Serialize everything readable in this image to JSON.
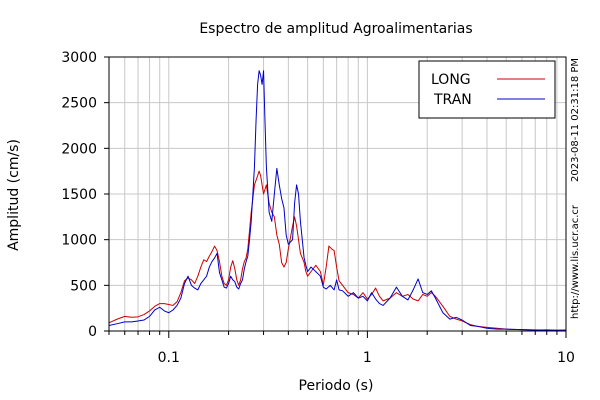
{
  "chart_data": {
    "type": "line",
    "title": "Espectro de amplitud Agroalimentarias",
    "xlabel": "Periodo (s)",
    "ylabel": "Amplitud (cm/s)",
    "x_scale": "log",
    "xlim": [
      0.05,
      10
    ],
    "ylim": [
      0,
      3000
    ],
    "x_tick_labels": [
      "0.1",
      "1",
      "10"
    ],
    "x_tick_values": [
      0.1,
      1,
      10
    ],
    "y_tick_labels": [
      "0",
      "500",
      "1000",
      "1500",
      "2000",
      "2500",
      "3000"
    ],
    "y_tick_values": [
      0,
      500,
      1000,
      1500,
      2000,
      2500,
      3000
    ],
    "grid": true,
    "legend_position": "top-right",
    "side_text_1": "2023-08-11 02:31:18 PM",
    "side_text_2": "http://www.lis.ucr.ac.cr",
    "series": [
      {
        "name": "LONG",
        "color": "#cc0000",
        "points": [
          [
            0.05,
            90
          ],
          [
            0.055,
            130
          ],
          [
            0.06,
            160
          ],
          [
            0.065,
            150
          ],
          [
            0.07,
            155
          ],
          [
            0.075,
            180
          ],
          [
            0.08,
            220
          ],
          [
            0.085,
            270
          ],
          [
            0.09,
            300
          ],
          [
            0.095,
            300
          ],
          [
            0.1,
            290
          ],
          [
            0.105,
            280
          ],
          [
            0.11,
            320
          ],
          [
            0.115,
            420
          ],
          [
            0.12,
            550
          ],
          [
            0.125,
            580
          ],
          [
            0.13,
            560
          ],
          [
            0.135,
            520
          ],
          [
            0.14,
            600
          ],
          [
            0.145,
            700
          ],
          [
            0.15,
            780
          ],
          [
            0.155,
            760
          ],
          [
            0.16,
            820
          ],
          [
            0.165,
            870
          ],
          [
            0.17,
            930
          ],
          [
            0.175,
            880
          ],
          [
            0.18,
            760
          ],
          [
            0.185,
            600
          ],
          [
            0.19,
            520
          ],
          [
            0.195,
            500
          ],
          [
            0.2,
            560
          ],
          [
            0.205,
            700
          ],
          [
            0.21,
            770
          ],
          [
            0.215,
            680
          ],
          [
            0.22,
            560
          ],
          [
            0.225,
            500
          ],
          [
            0.23,
            560
          ],
          [
            0.235,
            680
          ],
          [
            0.24,
            760
          ],
          [
            0.245,
            800
          ],
          [
            0.25,
            900
          ],
          [
            0.255,
            1100
          ],
          [
            0.26,
            1300
          ],
          [
            0.265,
            1450
          ],
          [
            0.27,
            1600
          ],
          [
            0.275,
            1650
          ],
          [
            0.28,
            1700
          ],
          [
            0.285,
            1750
          ],
          [
            0.29,
            1700
          ],
          [
            0.295,
            1600
          ],
          [
            0.3,
            1500
          ],
          [
            0.31,
            1600
          ],
          [
            0.32,
            1400
          ],
          [
            0.33,
            1300
          ],
          [
            0.34,
            1250
          ],
          [
            0.35,
            1050
          ],
          [
            0.36,
            950
          ],
          [
            0.37,
            750
          ],
          [
            0.38,
            700
          ],
          [
            0.39,
            750
          ],
          [
            0.4,
            900
          ],
          [
            0.42,
            1150
          ],
          [
            0.43,
            1250
          ],
          [
            0.44,
            1150
          ],
          [
            0.45,
            1000
          ],
          [
            0.46,
            850
          ],
          [
            0.47,
            800
          ],
          [
            0.48,
            750
          ],
          [
            0.49,
            650
          ],
          [
            0.5,
            600
          ],
          [
            0.52,
            650
          ],
          [
            0.55,
            720
          ],
          [
            0.58,
            650
          ],
          [
            0.6,
            500
          ],
          [
            0.62,
            700
          ],
          [
            0.64,
            930
          ],
          [
            0.66,
            900
          ],
          [
            0.68,
            880
          ],
          [
            0.7,
            700
          ],
          [
            0.72,
            550
          ],
          [
            0.75,
            500
          ],
          [
            0.8,
            420
          ],
          [
            0.85,
            400
          ],
          [
            0.9,
            360
          ],
          [
            0.95,
            420
          ],
          [
            1.0,
            350
          ],
          [
            1.05,
            400
          ],
          [
            1.1,
            470
          ],
          [
            1.15,
            380
          ],
          [
            1.2,
            330
          ],
          [
            1.3,
            360
          ],
          [
            1.4,
            420
          ],
          [
            1.5,
            380
          ],
          [
            1.6,
            400
          ],
          [
            1.7,
            350
          ],
          [
            1.8,
            330
          ],
          [
            1.9,
            400
          ],
          [
            2.0,
            380
          ],
          [
            2.1,
            420
          ],
          [
            2.2,
            380
          ],
          [
            2.4,
            270
          ],
          [
            2.6,
            160
          ],
          [
            2.8,
            130
          ],
          [
            3.0,
            110
          ],
          [
            3.3,
            70
          ],
          [
            3.6,
            50
          ],
          [
            4.0,
            40
          ],
          [
            4.5,
            30
          ],
          [
            5.0,
            20
          ],
          [
            6.0,
            15
          ],
          [
            7.0,
            12
          ],
          [
            8.0,
            10
          ],
          [
            9.0,
            8
          ],
          [
            10.0,
            10
          ]
        ]
      },
      {
        "name": "TRAN",
        "color": "#0000cc",
        "points": [
          [
            0.05,
            60
          ],
          [
            0.055,
            80
          ],
          [
            0.06,
            100
          ],
          [
            0.065,
            100
          ],
          [
            0.07,
            110
          ],
          [
            0.075,
            120
          ],
          [
            0.08,
            160
          ],
          [
            0.085,
            230
          ],
          [
            0.09,
            260
          ],
          [
            0.095,
            220
          ],
          [
            0.1,
            200
          ],
          [
            0.105,
            230
          ],
          [
            0.11,
            280
          ],
          [
            0.115,
            360
          ],
          [
            0.12,
            520
          ],
          [
            0.125,
            600
          ],
          [
            0.13,
            500
          ],
          [
            0.135,
            470
          ],
          [
            0.14,
            450
          ],
          [
            0.145,
            520
          ],
          [
            0.15,
            560
          ],
          [
            0.155,
            600
          ],
          [
            0.16,
            700
          ],
          [
            0.165,
            760
          ],
          [
            0.17,
            800
          ],
          [
            0.175,
            850
          ],
          [
            0.18,
            640
          ],
          [
            0.185,
            560
          ],
          [
            0.19,
            480
          ],
          [
            0.195,
            470
          ],
          [
            0.2,
            520
          ],
          [
            0.205,
            600
          ],
          [
            0.21,
            560
          ],
          [
            0.215,
            540
          ],
          [
            0.22,
            480
          ],
          [
            0.225,
            460
          ],
          [
            0.23,
            520
          ],
          [
            0.235,
            560
          ],
          [
            0.24,
            680
          ],
          [
            0.245,
            760
          ],
          [
            0.25,
            820
          ],
          [
            0.255,
            1000
          ],
          [
            0.26,
            1200
          ],
          [
            0.265,
            1500
          ],
          [
            0.27,
            1800
          ],
          [
            0.275,
            2300
          ],
          [
            0.28,
            2700
          ],
          [
            0.285,
            2850
          ],
          [
            0.29,
            2800
          ],
          [
            0.295,
            2700
          ],
          [
            0.3,
            2850
          ],
          [
            0.305,
            2300
          ],
          [
            0.31,
            1800
          ],
          [
            0.32,
            1300
          ],
          [
            0.33,
            1200
          ],
          [
            0.34,
            1500
          ],
          [
            0.35,
            1780
          ],
          [
            0.36,
            1600
          ],
          [
            0.37,
            1450
          ],
          [
            0.38,
            1350
          ],
          [
            0.39,
            1050
          ],
          [
            0.4,
            950
          ],
          [
            0.42,
            1000
          ],
          [
            0.43,
            1400
          ],
          [
            0.44,
            1600
          ],
          [
            0.45,
            1500
          ],
          [
            0.46,
            1200
          ],
          [
            0.47,
            1000
          ],
          [
            0.48,
            800
          ],
          [
            0.49,
            720
          ],
          [
            0.5,
            650
          ],
          [
            0.52,
            700
          ],
          [
            0.55,
            650
          ],
          [
            0.58,
            600
          ],
          [
            0.6,
            480
          ],
          [
            0.62,
            460
          ],
          [
            0.65,
            500
          ],
          [
            0.68,
            450
          ],
          [
            0.7,
            560
          ],
          [
            0.72,
            450
          ],
          [
            0.75,
            440
          ],
          [
            0.8,
            380
          ],
          [
            0.85,
            420
          ],
          [
            0.9,
            360
          ],
          [
            0.95,
            380
          ],
          [
            1.0,
            330
          ],
          [
            1.05,
            420
          ],
          [
            1.1,
            350
          ],
          [
            1.15,
            300
          ],
          [
            1.2,
            280
          ],
          [
            1.3,
            360
          ],
          [
            1.4,
            480
          ],
          [
            1.5,
            380
          ],
          [
            1.6,
            340
          ],
          [
            1.7,
            450
          ],
          [
            1.8,
            570
          ],
          [
            1.9,
            420
          ],
          [
            2.0,
            400
          ],
          [
            2.1,
            440
          ],
          [
            2.2,
            360
          ],
          [
            2.4,
            200
          ],
          [
            2.6,
            130
          ],
          [
            2.8,
            150
          ],
          [
            3.0,
            120
          ],
          [
            3.3,
            60
          ],
          [
            3.6,
            50
          ],
          [
            4.0,
            30
          ],
          [
            4.5,
            20
          ],
          [
            5.0,
            20
          ],
          [
            6.0,
            15
          ],
          [
            7.0,
            10
          ],
          [
            8.0,
            12
          ],
          [
            9.0,
            8
          ],
          [
            10.0,
            10
          ]
        ]
      }
    ]
  }
}
